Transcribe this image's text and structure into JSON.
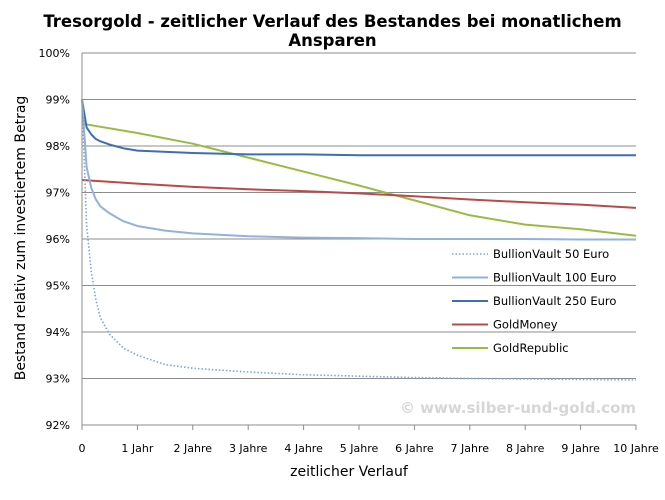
{
  "chart_data": {
    "type": "line",
    "title": "Tresorgold - zeitlicher Verlauf des Bestandes bei monatlichem Ansparen",
    "xlabel": "zeitlicher Verlauf",
    "ylabel": "Bestand relativ zum investiertem Betrag",
    "x_unit": "Jahre",
    "xlim": [
      0,
      10
    ],
    "ylim": [
      0.92,
      1.0
    ],
    "x_tick_values": [
      0,
      1,
      2,
      3,
      4,
      5,
      6,
      7,
      8,
      9,
      10
    ],
    "x_ticks": [
      "0",
      "1 Jahr",
      "2 Jahre",
      "3 Jahre",
      "4 Jahre",
      "5 Jahre",
      "6 Jahre",
      "7 Jahre",
      "8 Jahre",
      "9 Jahre",
      "10 Jahre"
    ],
    "y_tick_values": [
      0.92,
      0.93,
      0.94,
      0.95,
      0.96,
      0.97,
      0.98,
      0.99,
      1.0
    ],
    "y_ticks": [
      "92%",
      "93%",
      "94%",
      "95%",
      "96%",
      "97%",
      "98%",
      "99%",
      "100%"
    ],
    "grid": "horizontal",
    "legend_position": "right",
    "watermark": "© www.silber-und-gold.com",
    "series": [
      {
        "name": "BullionVault 50 Euro",
        "color": "#7ea5d6",
        "dash": "dotted",
        "points": [
          [
            0,
            0.99
          ],
          [
            0.083,
            0.963
          ],
          [
            0.167,
            0.953
          ],
          [
            0.25,
            0.947
          ],
          [
            0.333,
            0.943
          ],
          [
            0.5,
            0.9395
          ],
          [
            0.75,
            0.9365
          ],
          [
            1,
            0.935
          ],
          [
            1.5,
            0.933
          ],
          [
            2,
            0.9322
          ],
          [
            3,
            0.9314
          ],
          [
            4,
            0.9308
          ],
          [
            5,
            0.9305
          ],
          [
            6,
            0.9302
          ],
          [
            7,
            0.93
          ],
          [
            8,
            0.9299
          ],
          [
            9,
            0.9298
          ],
          [
            10,
            0.9297
          ]
        ]
      },
      {
        "name": "BullionVault 100 Euro",
        "color": "#92b2da",
        "dash": "solid",
        "points": [
          [
            0,
            0.99
          ],
          [
            0.083,
            0.9755
          ],
          [
            0.167,
            0.971
          ],
          [
            0.25,
            0.9685
          ],
          [
            0.333,
            0.967
          ],
          [
            0.5,
            0.9655
          ],
          [
            0.75,
            0.9638
          ],
          [
            1,
            0.9628
          ],
          [
            1.5,
            0.9618
          ],
          [
            2,
            0.9612
          ],
          [
            3,
            0.9606
          ],
          [
            4,
            0.9603
          ],
          [
            5,
            0.9602
          ],
          [
            6,
            0.96
          ],
          [
            7,
            0.96
          ],
          [
            8,
            0.96
          ],
          [
            9,
            0.9599
          ],
          [
            10,
            0.9599
          ]
        ]
      },
      {
        "name": "BullionVault 250 Euro",
        "color": "#3d6fb0",
        "dash": "solid",
        "points": [
          [
            0,
            0.99
          ],
          [
            0.083,
            0.984
          ],
          [
            0.167,
            0.9825
          ],
          [
            0.25,
            0.9815
          ],
          [
            0.333,
            0.981
          ],
          [
            0.5,
            0.9803
          ],
          [
            0.75,
            0.9795
          ],
          [
            1,
            0.979
          ],
          [
            2,
            0.9785
          ],
          [
            3,
            0.9782
          ],
          [
            4,
            0.9782
          ],
          [
            5,
            0.978
          ],
          [
            6,
            0.978
          ],
          [
            7,
            0.978
          ],
          [
            8,
            0.978
          ],
          [
            9,
            0.978
          ],
          [
            10,
            0.978
          ]
        ]
      },
      {
        "name": "GoldMoney",
        "color": "#b94a48",
        "dash": "solid",
        "points": [
          [
            0,
            0.9727
          ],
          [
            1,
            0.9719
          ],
          [
            2,
            0.9712
          ],
          [
            3,
            0.9707
          ],
          [
            4,
            0.9703
          ],
          [
            5,
            0.9698
          ],
          [
            6,
            0.9692
          ],
          [
            7,
            0.9685
          ],
          [
            8,
            0.9679
          ],
          [
            9,
            0.9674
          ],
          [
            10,
            0.9667
          ]
        ]
      },
      {
        "name": "GoldRepublic",
        "color": "#99bb44",
        "dash": "solid",
        "points": [
          [
            0,
            0.9848
          ],
          [
            1,
            0.9828
          ],
          [
            2,
            0.9805
          ],
          [
            3,
            0.9775
          ],
          [
            4,
            0.9745
          ],
          [
            5,
            0.9715
          ],
          [
            6,
            0.9683
          ],
          [
            7,
            0.9651
          ],
          [
            8,
            0.9631
          ],
          [
            9,
            0.9621
          ],
          [
            10,
            0.9607
          ]
        ]
      }
    ]
  }
}
